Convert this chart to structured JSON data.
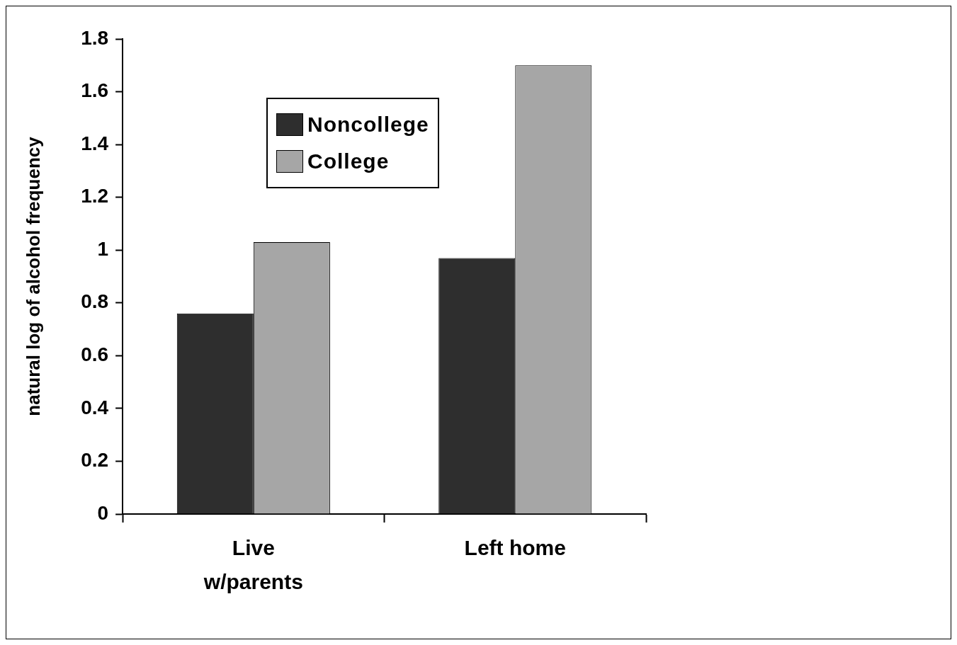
{
  "chart_data": {
    "type": "bar",
    "ylabel": "natural log of alcohol frequency",
    "categories": [
      "Live w/parents",
      "Left home"
    ],
    "series": [
      {
        "name": "Noncollege",
        "color": "#2e2e2e",
        "values": [
          0.76,
          0.97
        ]
      },
      {
        "name": "College",
        "color": "#a6a6a6",
        "values": [
          1.03,
          1.7
        ]
      }
    ],
    "ylim": [
      0,
      1.8
    ],
    "yticks": [
      0,
      0.2,
      0.4,
      0.6,
      0.8,
      1,
      1.2,
      1.4,
      1.6,
      1.8
    ],
    "grid": false,
    "legend": "top left"
  }
}
